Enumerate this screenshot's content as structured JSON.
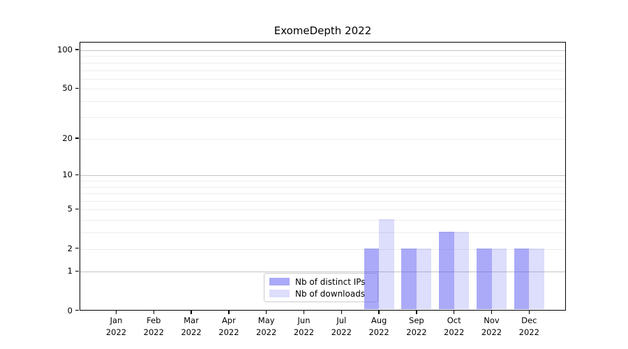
{
  "figure": {
    "title": "ExomeDepth 2022"
  },
  "chart_data": {
    "type": "bar",
    "title": "ExomeDepth 2022",
    "xlabel": "",
    "ylabel": "",
    "categories": [
      "Jan 2022",
      "Feb 2022",
      "Mar 2022",
      "Apr 2022",
      "May 2022",
      "Jun 2022",
      "Jul 2022",
      "Aug 2022",
      "Sep 2022",
      "Oct 2022",
      "Nov 2022",
      "Dec 2022"
    ],
    "x_tick_months": [
      "Jan",
      "Feb",
      "Mar",
      "Apr",
      "May",
      "Jun",
      "Jul",
      "Aug",
      "Sep",
      "Oct",
      "Nov",
      "Dec"
    ],
    "x_tick_year": "2022",
    "series": [
      {
        "name": "Nb of distinct IPs",
        "values": [
          0,
          0,
          0,
          0,
          0,
          0,
          0,
          2,
          2,
          3,
          2,
          2
        ],
        "color": "rgba(85,85,241,0.5)"
      },
      {
        "name": "Nb of downloads",
        "values": [
          0,
          0,
          0,
          0,
          0,
          0,
          0,
          4,
          2,
          3,
          2,
          2
        ],
        "color": "rgba(85,85,241,0.2)"
      }
    ],
    "yscale": "log1p",
    "ylim": [
      0,
      115
    ],
    "yticks": [
      0,
      1,
      2,
      5,
      10,
      20,
      50,
      100
    ],
    "ytick_labels": [
      "0",
      "1",
      "2",
      "5",
      "10",
      "20",
      "50",
      "100"
    ],
    "major_gridlines": [
      1,
      10,
      100
    ],
    "minor_gridlines": [
      2,
      3,
      4,
      5,
      6,
      7,
      8,
      9,
      20,
      30,
      40,
      50,
      60,
      70,
      80,
      90
    ],
    "grid": true,
    "legend": {
      "position": "lower center",
      "entries": [
        "Nb of distinct IPs",
        "Nb of downloads"
      ]
    },
    "colors": {
      "background": "#ffffff",
      "axis": "#000000",
      "grid_minor": "#ededed",
      "grid_major": "#c4c4c4",
      "bar_distinct_ips_on_white": "#aaaaf8",
      "bar_downloads_on_white": "#d8d8fb"
    }
  }
}
